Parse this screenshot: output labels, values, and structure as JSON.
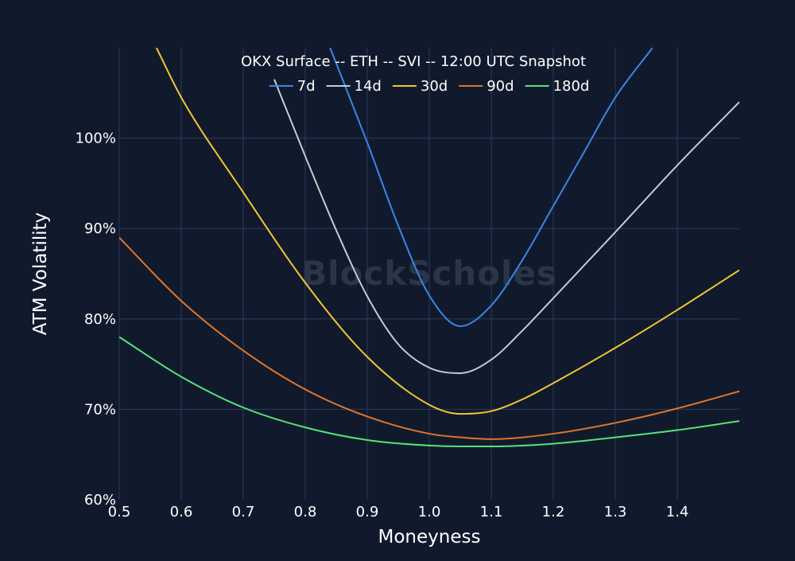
{
  "chart_data": {
    "type": "line",
    "title": "OKX Surface -- ETH -- SVI -- 12:00 UTC Snapshot",
    "xlabel": "Moneyness",
    "ylabel": "ATM Volatility",
    "watermark": "BlockScholes",
    "xlim": [
      0.5,
      1.5
    ],
    "ylim": [
      60,
      110
    ],
    "xticks": [
      0.5,
      0.6,
      0.7,
      0.8,
      0.9,
      1.0,
      1.1,
      1.2,
      1.3,
      1.4
    ],
    "xtick_labels": [
      "0.5",
      "0.6",
      "0.7",
      "0.8",
      "0.9",
      "1.0",
      "1.1",
      "1.2",
      "1.3",
      "1.4"
    ],
    "yticks": [
      60,
      70,
      80,
      90,
      100
    ],
    "ytick_labels": [
      "60%",
      "70%",
      "80%",
      "90%",
      "100%"
    ],
    "grid": true,
    "legend_position": "top-center",
    "series": [
      {
        "name": "7d",
        "color": "#3a86e8",
        "x": [
          0.84,
          0.9,
          0.95,
          1.0,
          1.05,
          1.1,
          1.15,
          1.2,
          1.25,
          1.3,
          1.36
        ],
        "y": [
          110,
          99.5,
          90.3,
          82.6,
          79.2,
          81.5,
          86.5,
          92.5,
          98.5,
          104.5,
          110
        ]
      },
      {
        "name": "14d",
        "color": "#c6cbd3",
        "x": [
          0.75,
          0.8,
          0.85,
          0.9,
          0.95,
          1.0,
          1.05,
          1.1,
          1.15,
          1.2,
          1.3,
          1.4,
          1.5
        ],
        "y": [
          106.5,
          98.0,
          89.8,
          82.5,
          77.2,
          74.6,
          74.0,
          75.5,
          78.7,
          82.3,
          89.6,
          97.0,
          104.0
        ]
      },
      {
        "name": "30d",
        "color": "#f3c531",
        "x": [
          0.56,
          0.6,
          0.7,
          0.8,
          0.9,
          1.0,
          1.05,
          1.1,
          1.15,
          1.2,
          1.3,
          1.4,
          1.5
        ],
        "y": [
          110,
          104.5,
          94.0,
          84.0,
          75.8,
          70.5,
          69.5,
          69.8,
          71.1,
          72.9,
          76.8,
          81.0,
          85.4
        ]
      },
      {
        "name": "90d",
        "color": "#e0742a",
        "x": [
          0.5,
          0.6,
          0.7,
          0.8,
          0.9,
          1.0,
          1.05,
          1.1,
          1.2,
          1.3,
          1.4,
          1.5
        ],
        "y": [
          89.0,
          82.0,
          76.5,
          72.2,
          69.2,
          67.3,
          66.9,
          66.7,
          67.3,
          68.5,
          70.1,
          72.0
        ]
      },
      {
        "name": "180d",
        "color": "#55e37a",
        "x": [
          0.5,
          0.6,
          0.7,
          0.8,
          0.9,
          1.0,
          1.05,
          1.1,
          1.2,
          1.3,
          1.4,
          1.5
        ],
        "y": [
          78.0,
          73.6,
          70.2,
          68.0,
          66.6,
          66.0,
          65.9,
          65.9,
          66.2,
          66.9,
          67.7,
          68.7
        ]
      }
    ]
  }
}
